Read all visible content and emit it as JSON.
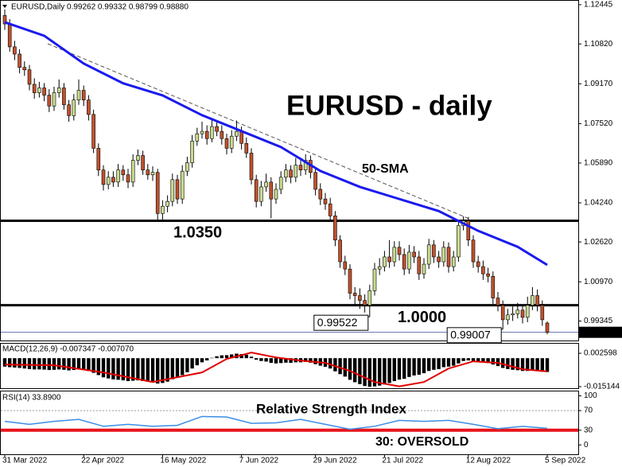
{
  "chart_data": [
    {
      "type": "candlestick",
      "header": "EURUSD,Daily  0.99262 0.99332 0.98799 0.98880",
      "title": "EURUSD - daily",
      "up_color": "#c8dc8e",
      "down_color": "#c0522c",
      "categories": [
        "31 Mar 2022",
        null,
        null,
        null,
        null,
        null,
        null,
        null,
        null,
        null,
        null,
        null,
        null,
        null,
        null,
        null,
        "22 Apr 2022",
        null,
        null,
        null,
        null,
        null,
        null,
        null,
        null,
        null,
        null,
        null,
        null,
        null,
        null,
        null,
        "16 May 2022",
        null,
        null,
        null,
        null,
        null,
        null,
        null,
        null,
        null,
        null,
        null,
        null,
        null,
        null,
        null,
        "7 Jun 2022",
        null,
        null,
        null,
        null,
        null,
        null,
        null,
        null,
        null,
        null,
        null,
        null,
        null,
        null,
        "29 Jun 2022",
        null,
        null,
        null,
        null,
        null,
        null,
        null,
        null,
        null,
        null,
        null,
        null,
        null,
        "21 Jul 2022",
        null,
        null,
        null,
        null,
        null,
        null,
        null,
        null,
        null,
        null,
        null,
        null,
        null,
        null,
        null,
        null,
        "12 Aug 2022",
        null,
        null,
        null,
        null,
        null,
        null,
        null,
        null,
        null,
        null,
        null,
        null,
        null,
        null,
        null,
        "5 Sep 2022"
      ],
      "candles": [
        [
          1.12,
          1.1225,
          1.114,
          1.1165
        ],
        [
          1.1165,
          1.1185,
          1.105,
          1.107
        ],
        [
          1.107,
          1.1095,
          1.1015,
          1.104
        ],
        [
          1.104,
          1.106,
          1.096,
          1.0985
        ],
        [
          1.0985,
          1.101,
          1.095,
          1.0975
        ],
        [
          1.0975,
          1.0995,
          1.089,
          1.0915
        ],
        [
          1.0915,
          1.094,
          1.0855,
          1.088
        ],
        [
          1.088,
          1.0925,
          1.086,
          1.09
        ],
        [
          1.09,
          1.092,
          1.0845,
          1.087
        ],
        [
          1.087,
          1.0895,
          1.08,
          1.0825
        ],
        [
          1.0825,
          1.0905,
          1.0805,
          1.088
        ],
        [
          1.088,
          1.0935,
          1.086,
          1.09
        ],
        [
          1.09,
          1.092,
          1.081,
          1.083
        ],
        [
          1.083,
          1.085,
          1.076,
          1.0785
        ],
        [
          1.0785,
          1.0875,
          1.0765,
          1.085
        ],
        [
          1.085,
          1.0935,
          1.083,
          1.089
        ],
        [
          1.089,
          1.091,
          1.0825,
          1.085
        ],
        [
          1.085,
          1.087,
          1.0765,
          1.079
        ],
        [
          1.079,
          1.081,
          1.063,
          1.065
        ],
        [
          1.065,
          1.067,
          1.0535,
          1.056
        ],
        [
          1.056,
          1.058,
          1.0475,
          1.05
        ],
        [
          1.05,
          1.0555,
          1.048,
          1.053
        ],
        [
          1.053,
          1.0555,
          1.049,
          1.051
        ],
        [
          1.051,
          1.0585,
          1.049,
          1.056
        ],
        [
          1.056,
          1.058,
          1.0515,
          1.054
        ],
        [
          1.054,
          1.0565,
          1.0485,
          1.051
        ],
        [
          1.051,
          1.0625,
          1.049,
          1.06
        ],
        [
          1.06,
          1.0645,
          1.058,
          1.062
        ],
        [
          1.062,
          1.064,
          1.054,
          1.056
        ],
        [
          1.056,
          1.0585,
          1.052,
          1.054
        ],
        [
          1.054,
          1.0575,
          1.0515,
          1.055
        ],
        [
          1.055,
          1.0565,
          1.035,
          1.038
        ],
        [
          1.038,
          1.0435,
          1.0355,
          1.041
        ],
        [
          1.041,
          1.0455,
          1.0385,
          1.043
        ],
        [
          1.043,
          1.0545,
          1.041,
          1.052
        ],
        [
          1.052,
          1.054,
          1.042,
          1.044
        ],
        [
          1.044,
          1.058,
          1.042,
          1.0555
        ],
        [
          1.0555,
          1.0615,
          1.0535,
          1.059
        ],
        [
          1.059,
          1.0705,
          1.057,
          1.068
        ],
        [
          1.068,
          1.0735,
          1.066,
          1.071
        ],
        [
          1.071,
          1.076,
          1.069,
          1.072
        ],
        [
          1.072,
          1.0745,
          1.0665,
          1.069
        ],
        [
          1.069,
          1.077,
          1.0675,
          1.074
        ],
        [
          1.074,
          1.0765,
          1.07,
          1.072
        ],
        [
          1.072,
          1.0745,
          1.0665,
          1.069
        ],
        [
          1.069,
          1.071,
          1.0625,
          1.065
        ],
        [
          1.065,
          1.0725,
          1.063,
          1.07
        ],
        [
          1.07,
          1.0765,
          1.068,
          1.072
        ],
        [
          1.072,
          1.074,
          1.0645,
          1.067
        ],
        [
          1.067,
          1.0695,
          1.061,
          1.063
        ],
        [
          1.063,
          1.065,
          1.05,
          1.052
        ],
        [
          1.052,
          1.054,
          1.0405,
          1.043
        ],
        [
          1.043,
          1.0515,
          1.041,
          1.049
        ],
        [
          1.049,
          1.0545,
          1.047,
          1.051
        ],
        [
          1.051,
          1.053,
          1.036,
          1.044
        ],
        [
          1.044,
          1.0505,
          1.042,
          1.048
        ],
        [
          1.048,
          1.0555,
          1.046,
          1.053
        ],
        [
          1.053,
          1.0585,
          1.051,
          1.056
        ],
        [
          1.056,
          1.058,
          1.0505,
          1.053
        ],
        [
          1.053,
          1.061,
          1.051,
          1.058
        ],
        [
          1.058,
          1.0605,
          1.0535,
          1.056
        ],
        [
          1.056,
          1.0625,
          1.054,
          1.06
        ],
        [
          1.06,
          1.062,
          1.0525,
          1.055
        ],
        [
          1.055,
          1.057,
          1.0455,
          1.048
        ],
        [
          1.048,
          1.0505,
          1.0415,
          1.044
        ],
        [
          1.044,
          1.0465,
          1.0395,
          1.042
        ],
        [
          1.042,
          1.0445,
          1.0345,
          1.037
        ],
        [
          1.037,
          1.039,
          1.0245,
          1.027
        ],
        [
          1.027,
          1.029,
          1.0155,
          1.018
        ],
        [
          1.018,
          1.0205,
          1.0125,
          1.015
        ],
        [
          1.015,
          1.017,
          1.0025,
          1.005
        ],
        [
          1.005,
          1.0075,
          1.0,
          1.004
        ],
        [
          1.004,
          1.007,
          0.9985,
          1.002
        ],
        [
          1.002,
          1.0045,
          0.997,
          1.0
        ],
        [
          1.0,
          1.0085,
          0.99522,
          1.006
        ],
        [
          1.006,
          1.0175,
          1.004,
          1.015
        ],
        [
          1.015,
          1.0195,
          1.0125,
          1.016
        ],
        [
          1.016,
          1.0225,
          1.014,
          1.02
        ],
        [
          1.02,
          1.027,
          1.0155,
          1.018
        ],
        [
          1.018,
          1.0265,
          1.016,
          1.024
        ],
        [
          1.024,
          1.0265,
          1.0185,
          1.021
        ],
        [
          1.021,
          1.0235,
          1.0125,
          1.015
        ],
        [
          1.015,
          1.025,
          1.013,
          1.022
        ],
        [
          1.022,
          1.0245,
          1.0175,
          1.02
        ],
        [
          1.02,
          1.0225,
          1.0105,
          1.013
        ],
        [
          1.013,
          1.0195,
          1.011,
          1.017
        ],
        [
          1.017,
          1.0275,
          1.015,
          1.025
        ],
        [
          1.025,
          1.027,
          1.0175,
          1.02
        ],
        [
          1.02,
          1.0225,
          1.0155,
          1.018
        ],
        [
          1.018,
          1.0265,
          1.016,
          1.024
        ],
        [
          1.024,
          1.026,
          1.0135,
          1.016
        ],
        [
          1.016,
          1.0225,
          1.014,
          1.02
        ],
        [
          1.02,
          1.0355,
          1.018,
          1.033
        ],
        [
          1.033,
          1.0368,
          1.031,
          1.035
        ],
        [
          1.035,
          1.0365,
          1.0245,
          1.027
        ],
        [
          1.027,
          1.029,
          1.0155,
          1.018
        ],
        [
          1.018,
          1.0205,
          1.0135,
          1.016
        ],
        [
          1.016,
          1.0185,
          1.0105,
          1.013
        ],
        [
          1.013,
          1.0155,
          1.0095,
          1.012
        ],
        [
          1.012,
          1.014,
          1.0005,
          1.003
        ],
        [
          1.003,
          1.0055,
          0.9975,
          1.0
        ],
        [
          1.0,
          1.002,
          0.99007,
          0.994
        ],
        [
          0.994,
          0.9985,
          0.992,
          0.996
        ],
        [
          0.996,
          0.9995,
          0.9935,
          0.9965
        ],
        [
          0.9965,
          1.001,
          0.9945,
          0.998
        ],
        [
          0.998,
          1.0,
          0.9925,
          0.995
        ],
        [
          0.995,
          1.0035,
          0.993,
          1.0
        ],
        [
          1.0,
          1.0075,
          0.998,
          1.004
        ],
        [
          1.004,
          1.0065,
          0.9975,
          1.0
        ],
        [
          1.0,
          1.002,
          0.9915,
          0.994
        ],
        [
          0.99262,
          0.99332,
          0.98799,
          0.9888
        ]
      ],
      "sma": {
        "name": "50-SMA",
        "color": "#1a1aee",
        "x": [
          0,
          8,
          16,
          24,
          32,
          40,
          48,
          56,
          64,
          72,
          80,
          88,
          96,
          104,
          110
        ],
        "values": [
          1.1172,
          1.1116,
          1.1001,
          1.0919,
          1.0869,
          1.0787,
          1.0721,
          1.0655,
          1.0556,
          1.049,
          1.044,
          1.039,
          1.0308,
          1.0242,
          1.0167
        ]
      },
      "levels": [
        {
          "value": 1.035,
          "label": "1.0350"
        },
        {
          "value": 1.0,
          "label": "1.0000"
        }
      ],
      "callouts": [
        {
          "index": 74,
          "value": 0.99522,
          "label": "0.99522"
        },
        {
          "index": 101,
          "value": 0.99007,
          "label": "0.99007"
        }
      ],
      "last_price": {
        "value": 0.9888,
        "label": "0.98880"
      },
      "ylim": [
        0.9854,
        1.1264
      ],
      "yticks": [
        1.12445,
        {
          "value": 1.1082,
          "label": "1.10820"
        },
        {
          "value": 1.0917,
          "label": "1.09170"
        },
        {
          "value": 1.0752,
          "label": "1.07520"
        },
        {
          "value": 1.0589,
          "label": "1.05890"
        },
        {
          "value": 1.0424,
          "label": "1.04240"
        },
        {
          "value": 1.0262,
          "label": "1.02620"
        },
        {
          "value": 1.0097,
          "label": "1.00970"
        },
        0.99345
      ]
    },
    {
      "type": "macd",
      "title": "MACD(12,26,9) -0.007347 -0.007070",
      "color": "#000000",
      "values": [
        -0.0045,
        -0.0048,
        -0.005,
        -0.0052,
        -0.0055,
        -0.0058,
        -0.006,
        -0.006,
        -0.0061,
        -0.0063,
        -0.0062,
        -0.006,
        -0.0062,
        -0.0065,
        -0.0063,
        -0.006,
        -0.0062,
        -0.0068,
        -0.0078,
        -0.009,
        -0.0102,
        -0.0108,
        -0.0113,
        -0.0115,
        -0.0118,
        -0.0122,
        -0.012,
        -0.0118,
        -0.0122,
        -0.0125,
        -0.0125,
        -0.0135,
        -0.0132,
        -0.0125,
        -0.0112,
        -0.0105,
        -0.009,
        -0.0075,
        -0.0055,
        -0.0038,
        -0.0022,
        -0.0012,
        0.0002,
        0.001,
        0.0015,
        0.0016,
        0.002,
        0.0024,
        0.0022,
        0.0018,
        0.0008,
        -0.0008,
        -0.0015,
        -0.0018,
        -0.0025,
        -0.0028,
        -0.0026,
        -0.0024,
        -0.0025,
        -0.0022,
        -0.0022,
        -0.002,
        -0.0024,
        -0.0032,
        -0.004,
        -0.0046,
        -0.0055,
        -0.007,
        -0.0085,
        -0.0098,
        -0.0115,
        -0.0128,
        -0.0138,
        -0.0148,
        -0.0152,
        -0.015,
        -0.0146,
        -0.014,
        -0.0132,
        -0.0122,
        -0.0114,
        -0.011,
        -0.01,
        -0.0092,
        -0.0088,
        -0.008,
        -0.0068,
        -0.0062,
        -0.0058,
        -0.0048,
        -0.0045,
        -0.004,
        -0.0028,
        -0.0015,
        -0.0012,
        -0.0014,
        -0.0018,
        -0.0022,
        -0.0026,
        -0.0034,
        -0.0042,
        -0.0052,
        -0.0058,
        -0.0062,
        -0.0064,
        -0.0068,
        -0.0068,
        -0.0066,
        -0.0068,
        -0.0072,
        -0.007347
      ],
      "signal": {
        "color": "#e00000",
        "x": [
          0,
          10,
          20,
          30,
          40,
          45,
          50,
          55,
          60,
          65,
          70,
          75,
          80,
          85,
          90,
          95,
          100,
          105,
          110
        ],
        "values": [
          -0.0034,
          -0.0038,
          -0.0076,
          -0.0127,
          -0.0076,
          -0.0004,
          0.003,
          0.0004,
          -0.0013,
          -0.0025,
          -0.0068,
          -0.0127,
          -0.015,
          -0.0127,
          -0.0055,
          -0.0017,
          -0.0025,
          -0.0059,
          -0.00707
        ]
      },
      "ylim": [
        -0.016,
        0.0077
      ],
      "yticks": [
        0.002598,
        -0.015144
      ]
    },
    {
      "type": "line",
      "title": "RSI(14) 33.8900",
      "subtitle": "Relative Strength Index",
      "annotation": "30: OVERSOLD",
      "color": "#3a8ee6",
      "oversold_color": "#e8141c",
      "x": [
        0,
        5,
        10,
        15,
        20,
        25,
        30,
        35,
        40,
        45,
        50,
        55,
        60,
        65,
        70,
        75,
        80,
        85,
        90,
        95,
        100,
        105,
        110
      ],
      "values": [
        48,
        42,
        48,
        52,
        38,
        42,
        38,
        40,
        58,
        57,
        44,
        45,
        52,
        42,
        32,
        38,
        50,
        48,
        50,
        42,
        33,
        38,
        33.89
      ],
      "levels": [
        70,
        30
      ],
      "oversold": 30,
      "ylim": [
        -19,
        109
      ],
      "yticks": [
        100,
        70,
        30,
        0
      ]
    }
  ]
}
